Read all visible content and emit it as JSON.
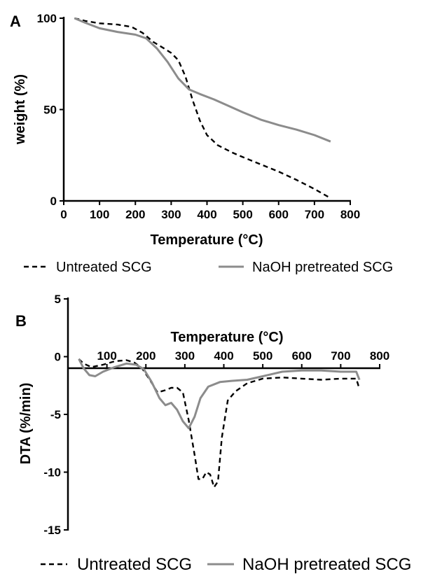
{
  "chart_data": [
    {
      "panel_label": "A",
      "type": "line",
      "xlabel": "Temperature (°C)",
      "ylabel": "weight (%)",
      "xlim": [
        0,
        800
      ],
      "ylim": [
        0,
        100
      ],
      "xticks": [
        "0",
        "100",
        "200",
        "300",
        "400",
        "500",
        "600",
        "700",
        "800"
      ],
      "yticks": [
        "0",
        "50",
        "100"
      ],
      "grid": false,
      "legend_position": "bottom",
      "series": [
        {
          "name": "Untreated SCG",
          "style": "dashed",
          "color": "#000000",
          "points": [
            [
              30,
              100
            ],
            [
              60,
              98.5
            ],
            [
              100,
              97.2
            ],
            [
              150,
              96.5
            ],
            [
              190,
              95.2
            ],
            [
              220,
              92
            ],
            [
              250,
              87
            ],
            [
              280,
              83.5
            ],
            [
              300,
              81
            ],
            [
              320,
              77
            ],
            [
              340,
              68
            ],
            [
              360,
              55
            ],
            [
              380,
              44
            ],
            [
              400,
              36
            ],
            [
              430,
              30.5
            ],
            [
              470,
              26.5
            ],
            [
              500,
              24
            ],
            [
              550,
              20
            ],
            [
              600,
              16
            ],
            [
              650,
              11.5
            ],
            [
              700,
              6.5
            ],
            [
              745,
              1.5
            ]
          ]
        },
        {
          "name": "NaOH pretreated SCG",
          "style": "solid",
          "color": "#8c8c8c",
          "points": [
            [
              30,
              100
            ],
            [
              60,
              97.5
            ],
            [
              100,
              94.5
            ],
            [
              150,
              92.5
            ],
            [
              200,
              91
            ],
            [
              230,
              89
            ],
            [
              260,
              83.5
            ],
            [
              290,
              76
            ],
            [
              320,
              67
            ],
            [
              350,
              61
            ],
            [
              380,
              58.5
            ],
            [
              420,
              55.5
            ],
            [
              460,
              52
            ],
            [
              500,
              48.5
            ],
            [
              550,
              44.5
            ],
            [
              600,
              41.5
            ],
            [
              650,
              39
            ],
            [
              700,
              36
            ],
            [
              745,
              32.5
            ]
          ]
        }
      ]
    },
    {
      "panel_label": "B",
      "type": "line",
      "xlabel": "Temperature (°C)",
      "ylabel": "DTA (%/min)",
      "xlim": [
        0,
        800
      ],
      "ylim": [
        -15,
        5
      ],
      "xticks": [
        "100",
        "200",
        "300",
        "400",
        "500",
        "600",
        "700",
        "800"
      ],
      "yticks": [
        "5",
        "0",
        "-5",
        "-10",
        "-15"
      ],
      "grid": false,
      "legend_position": "bottom",
      "series": [
        {
          "name": "Untreated SCG",
          "style": "dashed",
          "color": "#000000",
          "points": [
            [
              28,
              -0.2
            ],
            [
              40,
              -0.6
            ],
            [
              60,
              -0.9
            ],
            [
              90,
              -0.7
            ],
            [
              120,
              -0.4
            ],
            [
              150,
              -0.3
            ],
            [
              170,
              -0.5
            ],
            [
              190,
              -1.0
            ],
            [
              210,
              -2.0
            ],
            [
              230,
              -3.1
            ],
            [
              250,
              -2.9
            ],
            [
              265,
              -2.7
            ],
            [
              280,
              -2.7
            ],
            [
              295,
              -3.1
            ],
            [
              310,
              -5.5
            ],
            [
              325,
              -8.5
            ],
            [
              335,
              -10.6
            ],
            [
              345,
              -10.6
            ],
            [
              355,
              -10.0
            ],
            [
              365,
              -10.2
            ],
            [
              375,
              -11.3
            ],
            [
              385,
              -10.8
            ],
            [
              395,
              -7.0
            ],
            [
              410,
              -3.8
            ],
            [
              430,
              -3.0
            ],
            [
              460,
              -2.3
            ],
            [
              500,
              -1.9
            ],
            [
              550,
              -1.8
            ],
            [
              600,
              -1.9
            ],
            [
              650,
              -2.0
            ],
            [
              700,
              -1.9
            ],
            [
              740,
              -1.9
            ],
            [
              748,
              -2.8
            ]
          ]
        },
        {
          "name": "NaOH pretreated SCG",
          "style": "solid",
          "color": "#8c8c8c",
          "points": [
            [
              28,
              -0.2
            ],
            [
              40,
              -1.0
            ],
            [
              55,
              -1.6
            ],
            [
              70,
              -1.7
            ],
            [
              90,
              -1.3
            ],
            [
              120,
              -0.9
            ],
            [
              150,
              -0.6
            ],
            [
              175,
              -0.7
            ],
            [
              195,
              -1.1
            ],
            [
              215,
              -2.2
            ],
            [
              235,
              -3.6
            ],
            [
              250,
              -4.2
            ],
            [
              265,
              -4.0
            ],
            [
              280,
              -4.6
            ],
            [
              295,
              -5.6
            ],
            [
              310,
              -6.2
            ],
            [
              325,
              -5.2
            ],
            [
              340,
              -3.6
            ],
            [
              360,
              -2.6
            ],
            [
              390,
              -2.2
            ],
            [
              420,
              -2.1
            ],
            [
              460,
              -2.0
            ],
            [
              500,
              -1.7
            ],
            [
              550,
              -1.3
            ],
            [
              600,
              -1.2
            ],
            [
              650,
              -1.2
            ],
            [
              700,
              -1.3
            ],
            [
              740,
              -1.3
            ],
            [
              748,
              -2.0
            ]
          ]
        }
      ]
    }
  ]
}
